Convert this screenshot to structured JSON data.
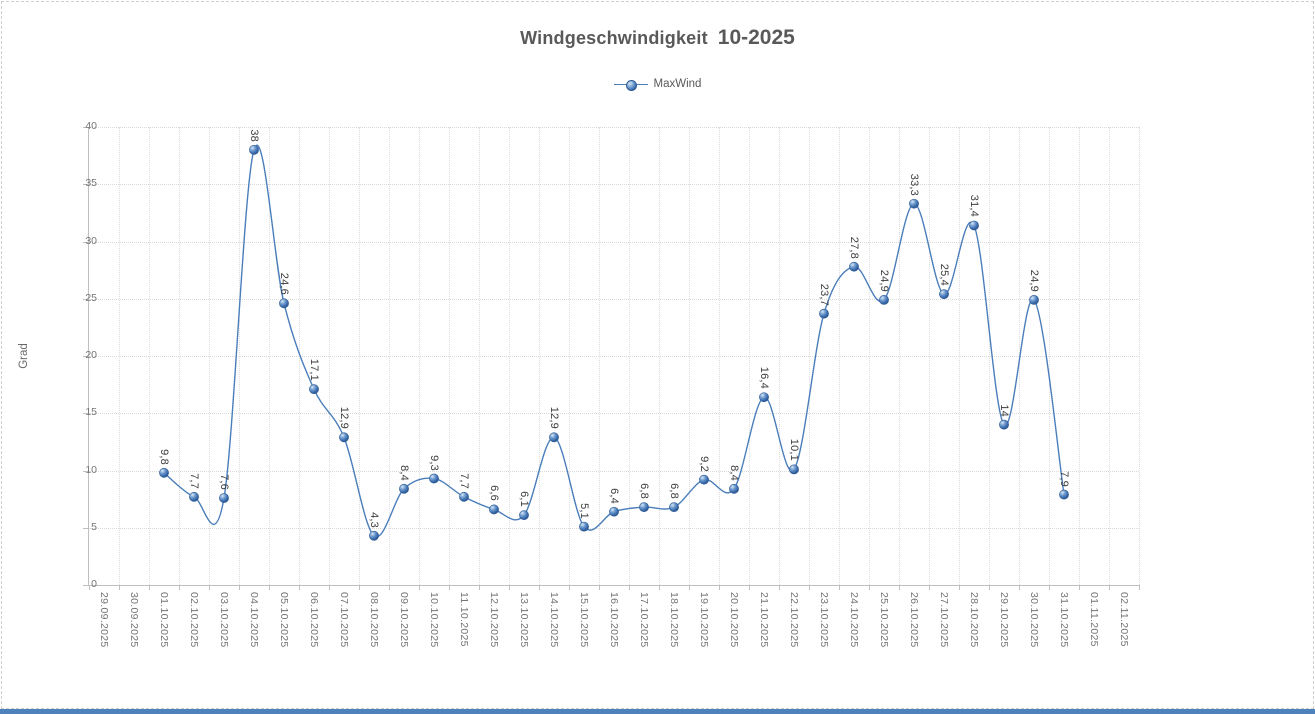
{
  "window": {
    "bottom_strip_color": "#4f81bd"
  },
  "chart": {
    "title_main": "Windgeschwindigkeit",
    "title_suffix": "10-2025",
    "legend": {
      "label": "MaxWind",
      "marker": "blue-sphere-with-line"
    },
    "y_axis_title": "Grad",
    "colors": {
      "line": "#4a7ebb",
      "marker_fill": "#4f81bd",
      "marker_edge": "#2f5b96",
      "gridline": "#d9d9d9",
      "axis_line": "#bfbfbf",
      "title_text": "#595959",
      "tick_text": "#757575",
      "data_label_text": "#3c3c3c"
    }
  },
  "chart_data": {
    "type": "line",
    "smoothed": true,
    "title": "Windgeschwindigkeit  10-2025",
    "xlabel": "",
    "ylabel": "Grad",
    "ylim": [
      0,
      40
    ],
    "ytick_step": 5,
    "yticks": [
      0,
      5,
      10,
      15,
      20,
      25,
      30,
      35,
      40
    ],
    "grid": true,
    "legend_position": "top",
    "categories": [
      "29.09.2025",
      "30.09.2025",
      "01.10.2025",
      "02.10.2025",
      "03.10.2025",
      "04.10.2025",
      "05.10.2025",
      "06.10.2025",
      "07.10.2025",
      "08.10.2025",
      "09.10.2025",
      "10.10.2025",
      "11.10.2025",
      "12.10.2025",
      "13.10.2025",
      "14.10.2025",
      "15.10.2025",
      "16.10.2025",
      "17.10.2025",
      "18.10.2025",
      "19.10.2025",
      "20.10.2025",
      "21.10.2025",
      "22.10.2025",
      "23.10.2025",
      "24.10.2025",
      "25.10.2025",
      "26.10.2025",
      "27.10.2025",
      "28.10.2025",
      "29.10.2025",
      "30.10.2025",
      "31.10.2025",
      "01.11.2025",
      "02.11.2025"
    ],
    "series": [
      {
        "name": "MaxWind",
        "color": "#4a7ebb",
        "values": [
          null,
          null,
          9.8,
          7.7,
          7.6,
          38,
          24.6,
          17.1,
          12.9,
          4.3,
          8.4,
          9.3,
          7.7,
          6.6,
          6.1,
          12.9,
          5.1,
          6.4,
          6.8,
          6.8,
          9.2,
          8.4,
          16.4,
          10.1,
          23.7,
          27.8,
          24.9,
          33.3,
          25.4,
          31.4,
          14,
          24.9,
          7.9,
          null,
          null
        ],
        "data_labels": [
          null,
          null,
          "9,8",
          "7,7",
          "7,6",
          "38",
          "24,6",
          "17,1",
          "12,9",
          "4,3",
          "8,4",
          "9,3",
          "7,7",
          "6,6",
          "6,1",
          "12,9",
          "5,1",
          "6,4",
          "6,8",
          "6,8",
          "9,2",
          "8,4",
          "16,4",
          "10,1",
          "23,7",
          "27,8",
          "24,9",
          "33,3",
          "25,4",
          "31,4",
          "14",
          "24,9",
          "7,9",
          null,
          null
        ]
      }
    ]
  }
}
